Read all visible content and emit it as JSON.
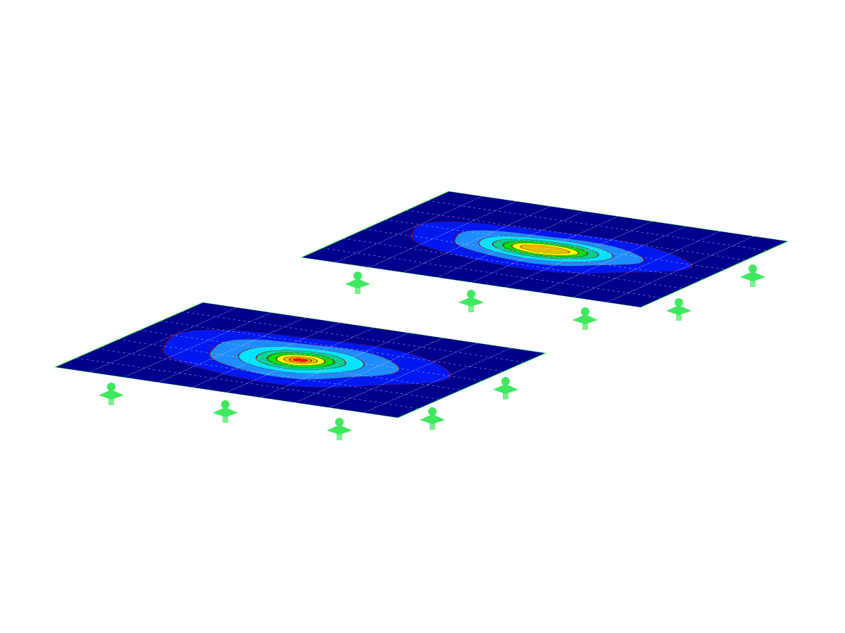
{
  "viewport": {
    "background": "#ffffff",
    "plates": [
      {
        "label": "",
        "contour_shape": "round",
        "support_count": 5
      },
      {
        "label": "",
        "contour_shape": "elongated",
        "support_count": 5
      }
    ],
    "contour_colors": [
      "#00008c",
      "#0018f0",
      "#1e8cff",
      "#00e4ff",
      "#00d08c",
      "#00e000",
      "#ffff00",
      "#e0c000",
      "#ff8c00",
      "#ff0000"
    ],
    "edge_color": "#40ff40",
    "support_color": "#40e860",
    "grid_color": "#c8c8ff"
  }
}
